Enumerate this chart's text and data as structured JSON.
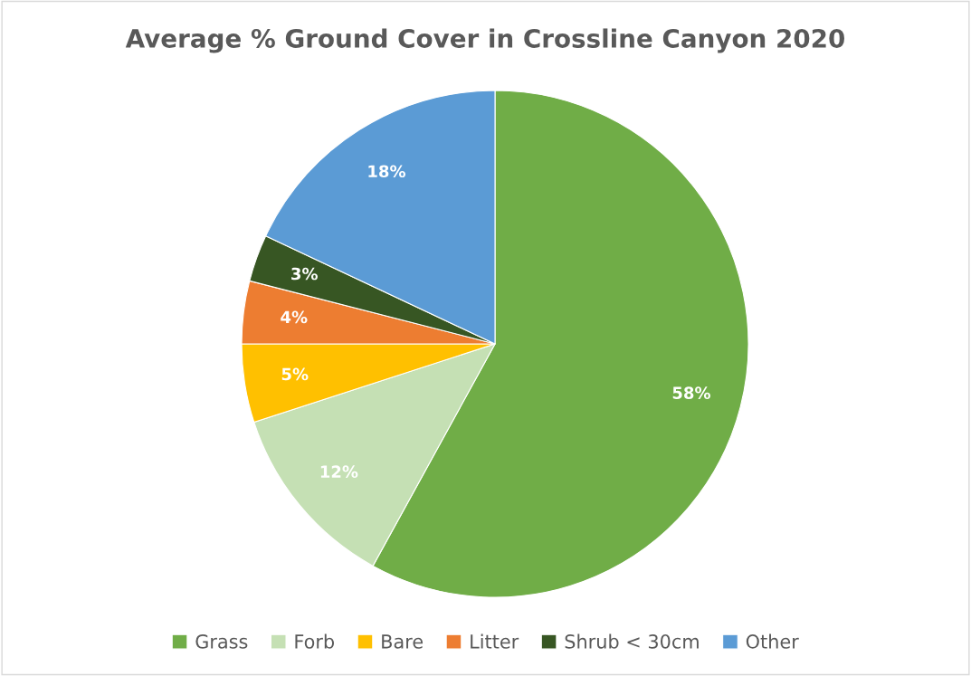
{
  "chart_data": {
    "type": "pie",
    "title": "Average % Ground Cover in Crossline Canyon 2020",
    "categories": [
      "Grass",
      "Forb",
      "Bare",
      "Litter",
      "Shrub < 30cm",
      "Other"
    ],
    "values": [
      58,
      12,
      5,
      4,
      3,
      18
    ],
    "colors": [
      "#70ad47",
      "#c5e0b4",
      "#ffc000",
      "#ed7d31",
      "#375623",
      "#5b9bd5"
    ],
    "value_labels": [
      "58%",
      "12%",
      "5%",
      "4%",
      "3%",
      "18%"
    ],
    "legend": "bottom"
  }
}
